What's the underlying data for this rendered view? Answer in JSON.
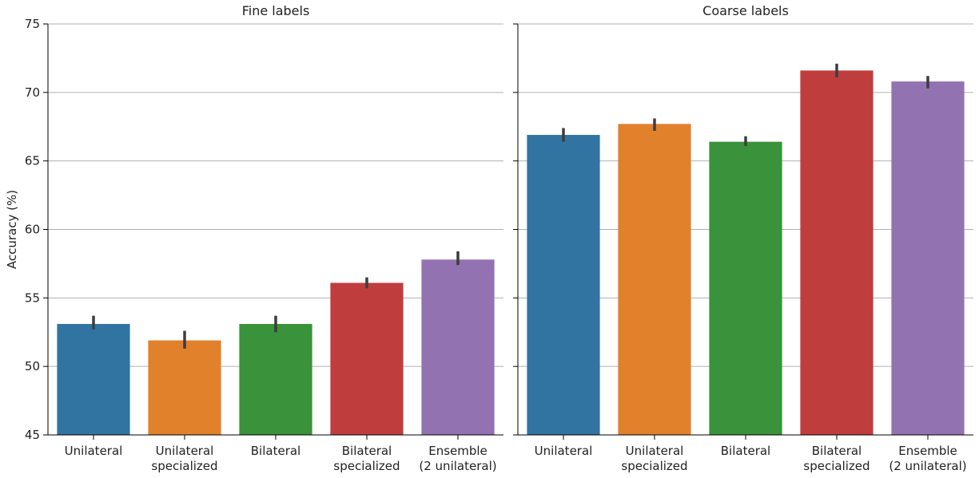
{
  "chart_data": {
    "type": "bar",
    "ylabel": "Accuracy (%)",
    "ylim": [
      45,
      75
    ],
    "yticks": [
      45,
      50,
      55,
      60,
      65,
      70,
      75
    ],
    "grid": "y",
    "categories": [
      [
        "Unilateral"
      ],
      [
        "Unilateral",
        "specialized"
      ],
      [
        "Bilateral"
      ],
      [
        "Bilateral",
        "specialized"
      ],
      [
        "Ensemble",
        "(2 unilateral)"
      ]
    ],
    "colors": [
      "#3274a1",
      "#e1812c",
      "#3a923a",
      "#c03d3e",
      "#9372b2"
    ],
    "panels": [
      {
        "title": "Fine labels",
        "values": [
          53.1,
          51.9,
          53.1,
          56.1,
          57.8
        ],
        "ci": [
          [
            52.7,
            53.7
          ],
          [
            51.3,
            52.6
          ],
          [
            52.5,
            53.7
          ],
          [
            55.7,
            56.5
          ],
          [
            57.4,
            58.4
          ]
        ]
      },
      {
        "title": "Coarse labels",
        "values": [
          66.9,
          67.7,
          66.4,
          71.6,
          70.8
        ],
        "ci": [
          [
            66.4,
            67.4
          ],
          [
            67.2,
            68.1
          ],
          [
            66.1,
            66.8
          ],
          [
            71.1,
            72.1
          ],
          [
            70.3,
            71.2
          ]
        ]
      }
    ]
  }
}
